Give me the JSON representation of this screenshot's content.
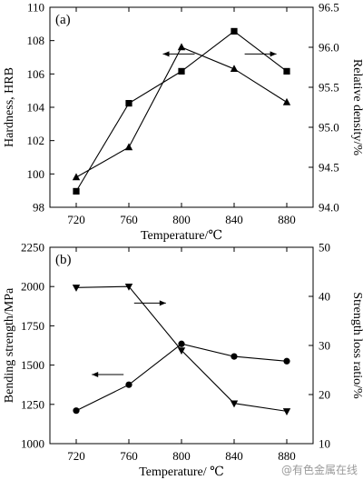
{
  "chart_data": [
    {
      "type": "line",
      "panel_label": "(a)",
      "x": [
        720,
        760,
        800,
        840,
        880
      ],
      "xlabel": "Temperature/℃",
      "xticks": [
        720,
        760,
        800,
        840,
        880
      ],
      "xlim": [
        700,
        900
      ],
      "ylabel": "Hardness, HRB",
      "ylim": [
        98,
        110
      ],
      "yticks": [
        98,
        100,
        102,
        104,
        106,
        108,
        110
      ],
      "y2label": "Relative density/%",
      "y2lim": [
        94.0,
        96.5
      ],
      "y2ticks": [
        "94.0",
        "94.5",
        "95.0",
        "95.5",
        "96.0",
        "96.5"
      ],
      "series": [
        {
          "axis": "left",
          "marker": "triangle",
          "values": [
            99.8,
            101.6,
            107.6,
            106.3,
            104.3
          ]
        },
        {
          "axis": "right",
          "marker": "square",
          "values": [
            94.2,
            95.3,
            95.7,
            96.2,
            95.7
          ]
        }
      ],
      "arrows": [
        {
          "points_to": "left",
          "x": 810,
          "y": 107.2,
          "length": 35
        },
        {
          "points_to": "right",
          "x": 848,
          "y": 107.2,
          "length": 35
        }
      ],
      "grid": false
    },
    {
      "type": "line",
      "panel_label": "(b)",
      "x": [
        720,
        760,
        800,
        840,
        880
      ],
      "xlabel": "Temperature/ ℃",
      "xticks": [
        720,
        760,
        800,
        840,
        880
      ],
      "xlim": [
        700,
        900
      ],
      "ylabel": "Bending strength/MPa",
      "ylim": [
        1000,
        2250
      ],
      "yticks": [
        1000,
        1250,
        1500,
        1750,
        2000,
        2250
      ],
      "y2label": "Strength loss ratio/%",
      "y2lim": [
        10,
        50
      ],
      "y2ticks": [
        10,
        20,
        30,
        40,
        50
      ],
      "series": [
        {
          "axis": "left",
          "marker": "circle",
          "values": [
            1210,
            1375,
            1635,
            1555,
            1525
          ]
        },
        {
          "axis": "right",
          "marker": "triangle-down",
          "values": [
            41.8,
            42.0,
            29.0,
            18.2,
            16.6
          ]
        }
      ],
      "arrows": [
        {
          "points_to": "left",
          "x": 756,
          "y": 1440,
          "length": 35
        },
        {
          "points_to": "right",
          "x": 764,
          "y": 1895,
          "length": 35
        }
      ],
      "grid": false
    }
  ],
  "watermark": "@有色金属在线"
}
